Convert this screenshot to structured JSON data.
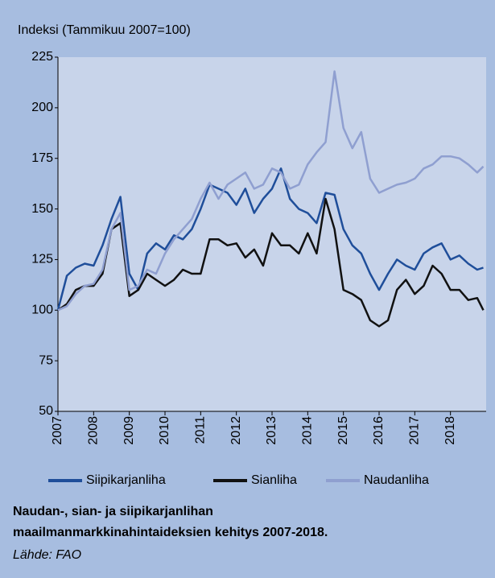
{
  "chart_data": {
    "type": "line",
    "ylabel": "Indeksi (Tammikuu 2007=100)",
    "caption": [
      "Naudan-, sian- ja siipikarjanlihan",
      "maailmanmarkkinahintaideksien kehitys 2007-2018."
    ],
    "source": "Lähde: FAO",
    "x": [
      2007,
      2007.25,
      2007.5,
      2007.75,
      2008,
      2008.25,
      2008.5,
      2008.75,
      2009,
      2009.25,
      2009.5,
      2009.75,
      2010,
      2010.25,
      2010.5,
      2010.75,
      2011,
      2011.25,
      2011.5,
      2011.75,
      2012,
      2012.25,
      2012.5,
      2012.75,
      2013,
      2013.25,
      2013.5,
      2013.75,
      2014,
      2014.25,
      2014.5,
      2014.75,
      2015,
      2015.25,
      2015.5,
      2015.75,
      2016,
      2016.25,
      2016.5,
      2016.75,
      2017,
      2017.25,
      2017.5,
      2017.75,
      2018,
      2018.25,
      2018.5,
      2018.75,
      2018.92
    ],
    "series": [
      {
        "name": "Siipikarjanliha",
        "color": "#1f4e9a",
        "values": [
          100,
          117,
          121,
          123,
          122,
          132,
          145,
          156,
          118,
          110,
          128,
          133,
          130,
          137,
          135,
          140,
          150,
          162,
          160,
          158,
          152,
          160,
          148,
          155,
          160,
          170,
          155,
          150,
          148,
          143,
          158,
          157,
          140,
          132,
          128,
          118,
          110,
          118,
          125,
          122,
          120,
          128,
          131,
          133,
          125,
          127,
          123,
          120,
          121
        ]
      },
      {
        "name": "Sianliha",
        "color": "#111111",
        "values": [
          100,
          103,
          110,
          112,
          112,
          118,
          140,
          143,
          107,
          110,
          118,
          115,
          112,
          115,
          120,
          118,
          118,
          135,
          135,
          132,
          133,
          126,
          130,
          122,
          138,
          132,
          132,
          128,
          138,
          128,
          155,
          140,
          110,
          108,
          105,
          95,
          92,
          95,
          110,
          115,
          108,
          112,
          122,
          118,
          110,
          110,
          105,
          106,
          100
        ]
      },
      {
        "name": "Naudanliha",
        "color": "#8f9fd0",
        "values": [
          100,
          102,
          108,
          112,
          113,
          120,
          140,
          148,
          110,
          112,
          120,
          118,
          128,
          135,
          140,
          145,
          155,
          163,
          155,
          162,
          165,
          168,
          160,
          162,
          170,
          168,
          160,
          162,
          172,
          178,
          183,
          218,
          190,
          180,
          188,
          165,
          158,
          160,
          162,
          163,
          165,
          170,
          172,
          176,
          176,
          175,
          172,
          168,
          171
        ]
      }
    ],
    "xlim": [
      2007,
      2019
    ],
    "xticks": [
      2007,
      2008,
      2009,
      2010,
      2011,
      2012,
      2013,
      2014,
      2015,
      2016,
      2017,
      2018
    ],
    "ylim": [
      50,
      225
    ],
    "yticks": [
      50,
      75,
      100,
      125,
      150,
      175,
      200,
      225
    ],
    "grid": false,
    "legend": "bottom"
  }
}
